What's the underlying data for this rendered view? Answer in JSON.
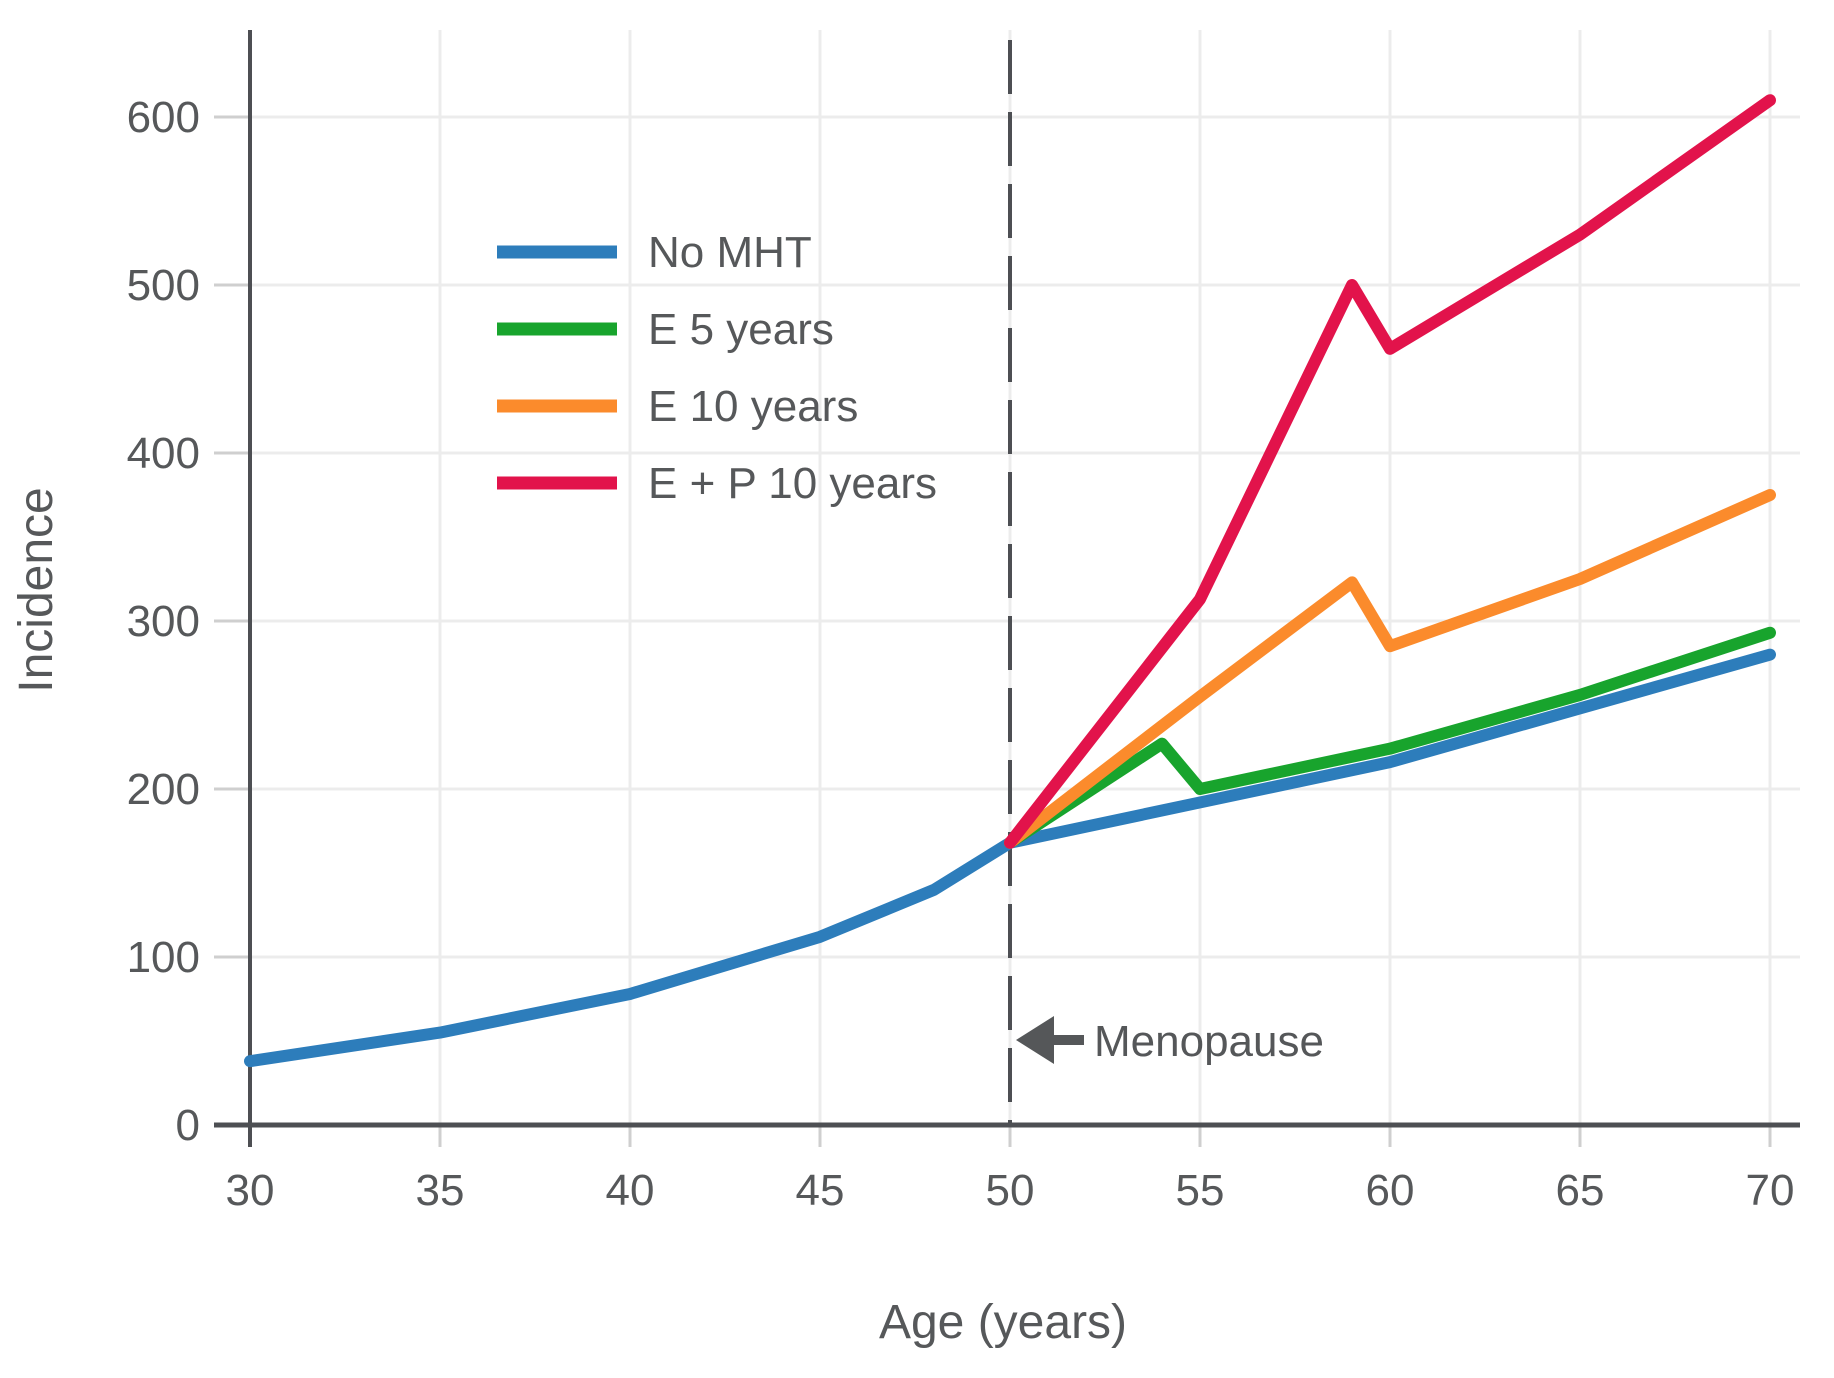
{
  "chart_data": {
    "type": "line",
    "title": "",
    "xlabel": "Age (years)",
    "ylabel": "Incidence",
    "x_ticks": [
      30,
      35,
      40,
      45,
      50,
      55,
      60,
      65,
      70
    ],
    "y_ticks": [
      0,
      100,
      200,
      300,
      400,
      500,
      600
    ],
    "xlim": [
      30,
      70.8
    ],
    "ylim": [
      0,
      650
    ],
    "grid": true,
    "legend_position": "upper-left-inside",
    "series": [
      {
        "name": "No MHT",
        "color": "#2d7dbb",
        "points": [
          [
            30,
            38
          ],
          [
            35,
            55
          ],
          [
            40,
            78
          ],
          [
            45,
            112
          ],
          [
            48,
            140
          ],
          [
            50,
            168
          ],
          [
            55,
            192
          ],
          [
            60,
            216
          ],
          [
            65,
            248
          ],
          [
            70,
            280
          ]
        ]
      },
      {
        "name": "E 5 years",
        "color": "#18a42d",
        "points": [
          [
            50,
            168
          ],
          [
            54,
            227
          ],
          [
            55,
            200
          ],
          [
            60,
            224
          ],
          [
            65,
            256
          ],
          [
            70,
            293
          ]
        ]
      },
      {
        "name": "E 10 years",
        "color": "#fb8b2c",
        "points": [
          [
            50,
            168
          ],
          [
            55,
            255
          ],
          [
            59,
            323
          ],
          [
            60,
            285
          ],
          [
            65,
            325
          ],
          [
            70,
            375
          ]
        ]
      },
      {
        "name": "E + P 10 years",
        "color": "#e2134b",
        "points": [
          [
            50,
            168
          ],
          [
            55,
            313
          ],
          [
            59,
            500
          ],
          [
            60,
            462
          ],
          [
            65,
            530
          ],
          [
            70,
            610
          ]
        ]
      }
    ],
    "vline": {
      "x": 50,
      "style": "dashed",
      "color": "#4d4f53"
    },
    "annotation": {
      "text": "Menopause",
      "x": 50,
      "y": 50,
      "arrow": "left"
    }
  },
  "colors": {
    "axis": "#4d4f53",
    "text": "#56585a",
    "gridline": "#ececec",
    "tick_stub": "#cfcfcf"
  }
}
